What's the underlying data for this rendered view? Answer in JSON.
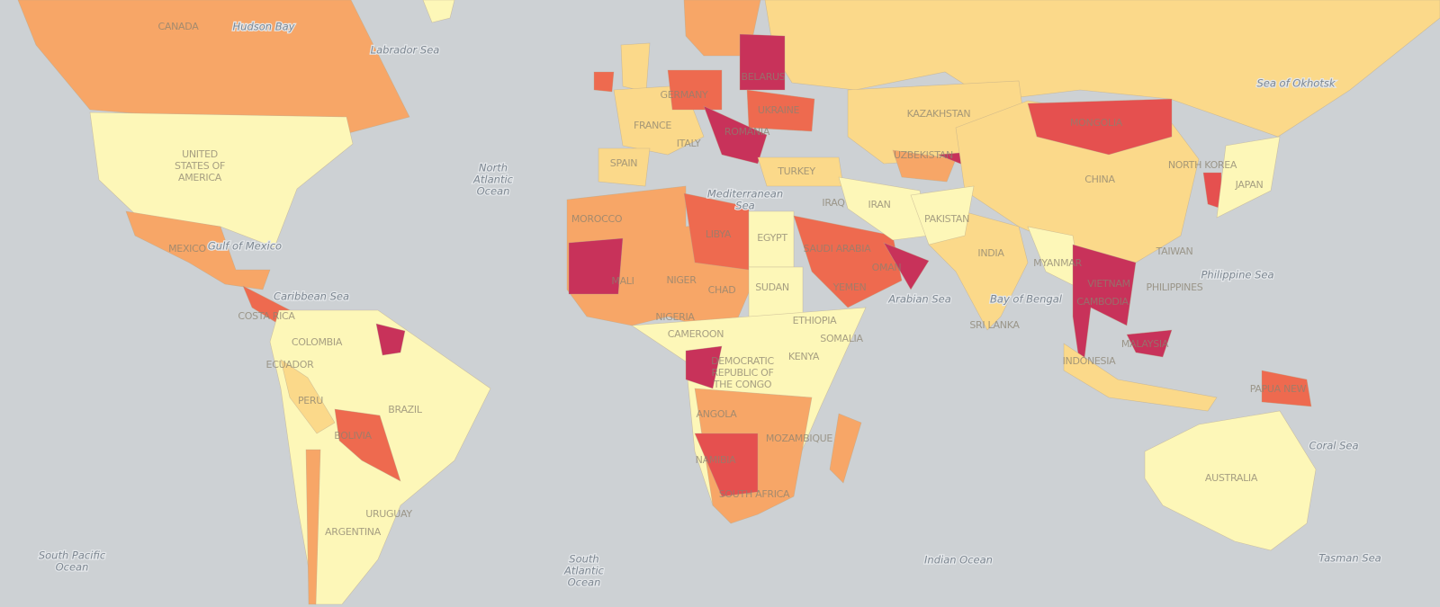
{
  "country_labels": [
    [
      "CANADA"
    ],
    [
      "UNITED",
      "STATES OF",
      "AMERICA"
    ],
    [
      "MEXICO"
    ],
    [
      "COSTA RICA"
    ],
    [
      "COLOMBIA"
    ],
    [
      "ECUADOR"
    ],
    [
      "PERU"
    ],
    [
      "BRAZIL"
    ],
    [
      "BOLIVIA"
    ],
    [
      "ARGENTINA"
    ],
    [
      "URUGUAY"
    ],
    [
      "GERMANY"
    ],
    [
      "FRANCE"
    ],
    [
      "SPAIN"
    ],
    [
      "ITALY"
    ],
    [
      "BELARUS"
    ],
    [
      "UKRAINE"
    ],
    [
      "ROMANIA"
    ],
    [
      "TURKEY"
    ],
    [
      "MOROCCO"
    ],
    [
      "LIBYA"
    ],
    [
      "EGYPT"
    ],
    [
      "MALI"
    ],
    [
      "NIGER"
    ],
    [
      "CHAD"
    ],
    [
      "SUDAN"
    ],
    [
      "NIGERIA"
    ],
    [
      "CAMEROON"
    ],
    [
      "ETHIOPIA"
    ],
    [
      "SOMALIA"
    ],
    [
      "KENYA"
    ],
    [
      "DEMOCRATIC",
      "REPUBLIC OF",
      "THE CONGO"
    ],
    [
      "ANGOLA"
    ],
    [
      "NAMIBIA"
    ],
    [
      "MOZAMBIQUE"
    ],
    [
      "SOUTH AFRICA"
    ],
    [
      "IRAQ"
    ],
    [
      "IRAN"
    ],
    [
      "SAUDI ARABIA"
    ],
    [
      "YEMEN"
    ],
    [
      "OMAN"
    ],
    [
      "PAKISTAN"
    ],
    [
      "INDIA"
    ],
    [
      "KAZAKHSTAN"
    ],
    [
      "UZBEKISTAN"
    ],
    [
      "MONGOLIA"
    ],
    [
      "CHINA"
    ],
    [
      "NORTH KOREA"
    ],
    [
      "JAPAN"
    ],
    [
      "TAIWAN"
    ],
    [
      "MYANMAR"
    ],
    [
      "VIETNAM"
    ],
    [
      "CAMBODIA"
    ],
    [
      "PHILIPPINES"
    ],
    [
      "MALAYSIA"
    ],
    [
      "INDONESIA"
    ],
    [
      "SRI LANKA"
    ],
    [
      "PAPUA NEW"
    ],
    [
      "AUSTRALIA"
    ]
  ],
  "water_labels": [
    [
      "Hudson Bay"
    ],
    [
      "Labrador Sea"
    ],
    [
      "North",
      "Atlantic",
      "Ocean"
    ],
    [
      "Gulf of Mexico"
    ],
    [
      "Caribbean Sea"
    ],
    [
      "South Pacific",
      "Ocean"
    ],
    [
      "South",
      "Atlantic",
      "Ocean"
    ],
    [
      "Mediterranean",
      "Sea"
    ],
    [
      "Arabian Sea"
    ],
    [
      "Bay of Bengal"
    ],
    [
      "Philippine Sea"
    ],
    [
      "Sea of Okhotsk"
    ],
    [
      "Indian Ocean"
    ],
    [
      "Coral Sea"
    ],
    [
      "Tasman Sea"
    ]
  ]
}
